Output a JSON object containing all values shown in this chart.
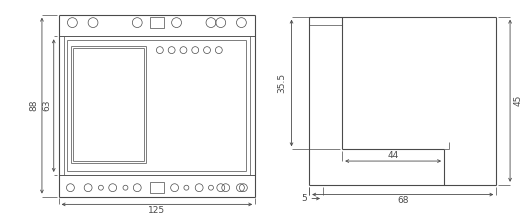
{
  "bg_color": "#ffffff",
  "line_color": "#4a4a4a",
  "dim_color": "#4a4a4a",
  "lw_main": 0.8,
  "lw_thin": 0.5,
  "lw_dim": 0.5,
  "font_size": 6.5,
  "dims_front": {
    "width_125": "125",
    "height_88": "88",
    "height_63": "63"
  },
  "dims_side": {
    "h_35_5": "35.5",
    "h_45": "45",
    "w_44": "44",
    "w_68": "68",
    "w_5": "5"
  }
}
